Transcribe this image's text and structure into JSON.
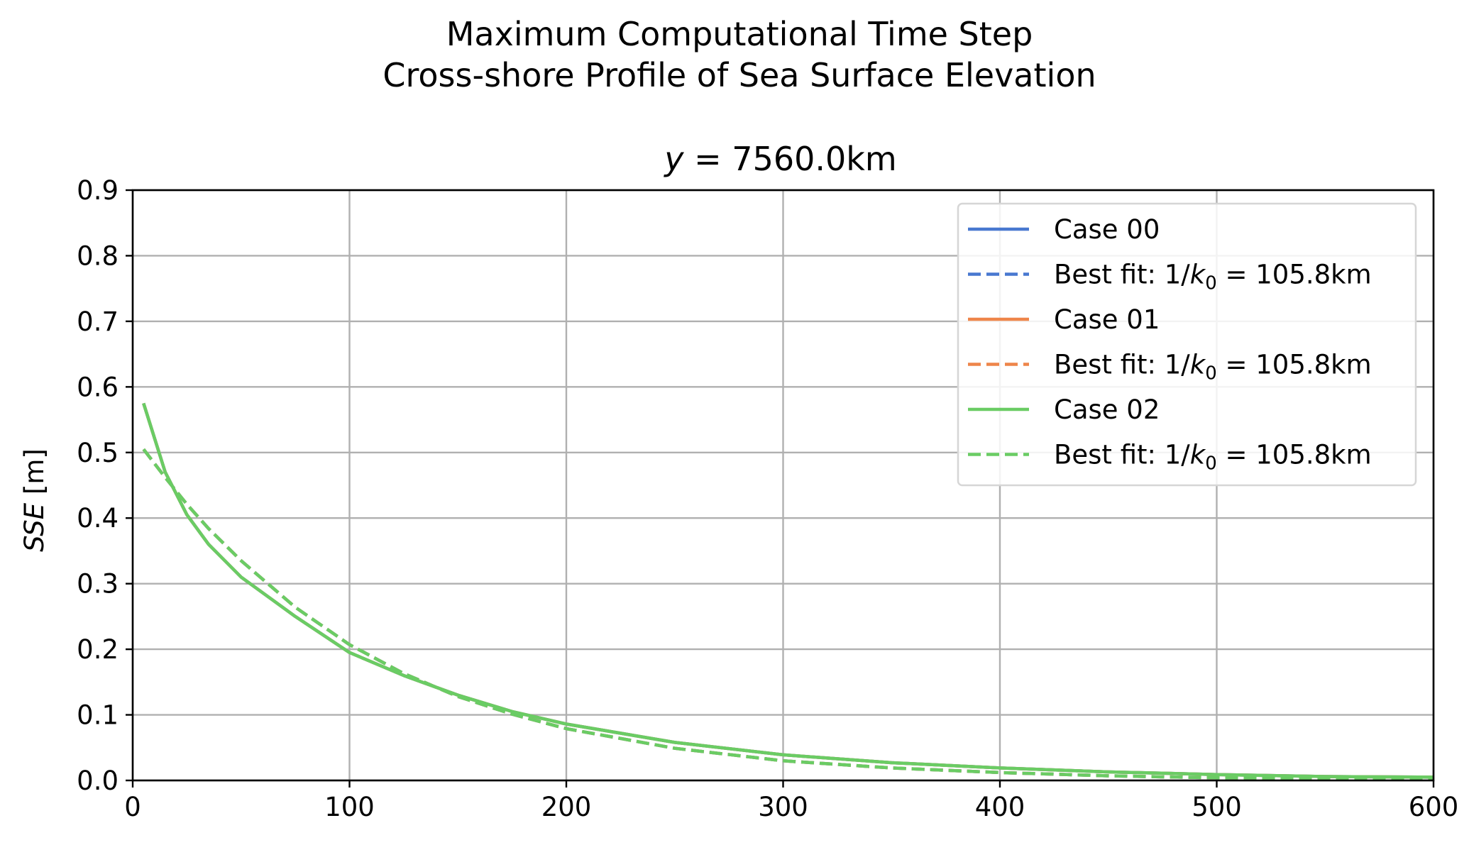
{
  "chart_data": {
    "type": "line",
    "suptitle": [
      "Maximum Computational Time Step",
      "Cross-shore Profile of Sea Surface Elevation"
    ],
    "title": "y = 7560.0km",
    "title_italic_part": "y",
    "title_rest": " = 7560.0km",
    "xlabel": "",
    "ylabel": "SSE [m]",
    "ylabel_italic_part": "SSE",
    "ylabel_rest": " [m]",
    "xlim": [
      0,
      600
    ],
    "ylim": [
      0,
      0.9
    ],
    "xticks": [
      0,
      100,
      200,
      300,
      400,
      500,
      600
    ],
    "yticks": [
      0.0,
      0.1,
      0.2,
      0.3,
      0.4,
      0.5,
      0.6,
      0.7,
      0.8,
      0.9
    ],
    "xtick_labels": [
      "0",
      "100",
      "200",
      "300",
      "400",
      "500",
      "600"
    ],
    "ytick_labels": [
      "0.0",
      "0.1",
      "0.2",
      "0.3",
      "0.4",
      "0.5",
      "0.6",
      "0.7",
      "0.8",
      "0.9"
    ],
    "grid": true,
    "legend_position": "top-right",
    "x": [
      5,
      15,
      25,
      35,
      50,
      75,
      100,
      125,
      150,
      175,
      200,
      250,
      300,
      350,
      400,
      450,
      500,
      550,
      600
    ],
    "series": [
      {
        "name": "Case 00",
        "style": "solid",
        "color": "#4878d0",
        "values": [
          0.575,
          0.47,
          0.405,
          0.36,
          0.31,
          0.25,
          0.195,
          0.16,
          0.13,
          0.105,
          0.086,
          0.058,
          0.039,
          0.027,
          0.019,
          0.013,
          0.009,
          0.006,
          0.005
        ]
      },
      {
        "name": "Best fit: 1/k₀ = 105.8km",
        "label_prefix": "Best fit: 1/",
        "label_k": "k",
        "label_sub": "0",
        "label_suffix": " = 105.8km",
        "style": "dashed",
        "color": "#4878d0",
        "values": [
          0.505,
          0.462,
          0.421,
          0.384,
          0.335,
          0.264,
          0.207,
          0.163,
          0.128,
          0.101,
          0.079,
          0.049,
          0.03,
          0.019,
          0.012,
          0.007,
          0.004,
          0.003,
          0.002
        ]
      },
      {
        "name": "Case 01",
        "style": "solid",
        "color": "#ee854a",
        "values": [
          0.575,
          0.47,
          0.405,
          0.36,
          0.31,
          0.25,
          0.195,
          0.16,
          0.13,
          0.105,
          0.086,
          0.058,
          0.039,
          0.027,
          0.019,
          0.013,
          0.009,
          0.006,
          0.005
        ]
      },
      {
        "name": "Best fit: 1/k₀ = 105.8km",
        "label_prefix": "Best fit: 1/",
        "label_k": "k",
        "label_sub": "0",
        "label_suffix": " = 105.8km",
        "style": "dashed",
        "color": "#ee854a",
        "values": [
          0.505,
          0.462,
          0.421,
          0.384,
          0.335,
          0.264,
          0.207,
          0.163,
          0.128,
          0.101,
          0.079,
          0.049,
          0.03,
          0.019,
          0.012,
          0.007,
          0.004,
          0.003,
          0.002
        ]
      },
      {
        "name": "Case 02",
        "style": "solid",
        "color": "#6acc64",
        "values": [
          0.575,
          0.47,
          0.405,
          0.36,
          0.31,
          0.25,
          0.195,
          0.16,
          0.13,
          0.105,
          0.086,
          0.058,
          0.039,
          0.027,
          0.019,
          0.013,
          0.009,
          0.006,
          0.005
        ]
      },
      {
        "name": "Best fit: 1/k₀ = 105.8km",
        "label_prefix": "Best fit: 1/",
        "label_k": "k",
        "label_sub": "0",
        "label_suffix": " = 105.8km",
        "style": "dashed",
        "color": "#6acc64",
        "values": [
          0.505,
          0.462,
          0.421,
          0.384,
          0.335,
          0.264,
          0.207,
          0.163,
          0.128,
          0.101,
          0.079,
          0.049,
          0.03,
          0.019,
          0.012,
          0.007,
          0.004,
          0.003,
          0.002
        ]
      }
    ]
  }
}
